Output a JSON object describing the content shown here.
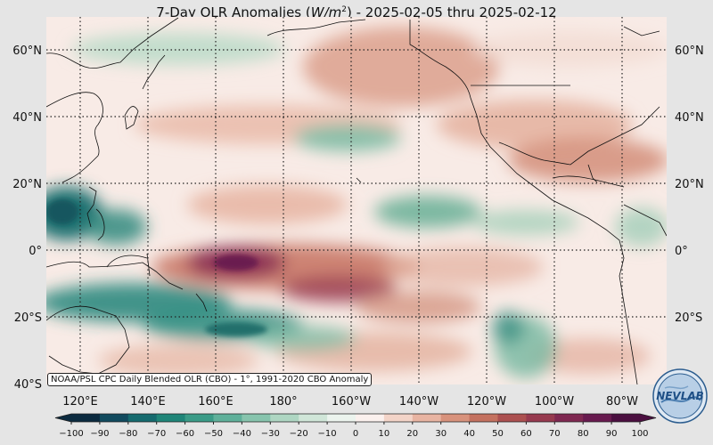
{
  "title": {
    "prefix": "7-Day OLR Anomalies (",
    "unit_italic": "W/m",
    "unit_exp": "2",
    "suffix": ") - 2025-02-05 thru 2025-02-12"
  },
  "source_note": "NOAA/PSL CPC Daily Blended OLR (CBO) - 1°, 1991-2020 CBO Anomaly",
  "logo_text": "NEVLAB",
  "map": {
    "lat_ticks": [
      "60°N",
      "40°N",
      "20°N",
      "0°",
      "20°S",
      "40°S"
    ],
    "lon_ticks": [
      "120°E",
      "140°E",
      "160°E",
      "180°",
      "160°W",
      "140°W",
      "120°W",
      "100°W",
      "80°W"
    ]
  },
  "colorbar": {
    "ticks": [
      "−100",
      "−90",
      "−80",
      "−70",
      "−60",
      "−50",
      "−40",
      "−30",
      "−20",
      "−10",
      "0",
      "10",
      "20",
      "30",
      "40",
      "50",
      "60",
      "70",
      "80",
      "90",
      "100"
    ],
    "range": [
      -100,
      100
    ],
    "colors": [
      "#0b2a3f",
      "#114a5e",
      "#156a6e",
      "#1f8578",
      "#3a9b87",
      "#5fb09a",
      "#87c4ad",
      "#aed6c2",
      "#d0e6d8",
      "#ecf4ee",
      "#fbf1ee",
      "#f3d4c8",
      "#e8b4a2",
      "#d8927c",
      "#c4715f",
      "#ac5050",
      "#973a4f",
      "#7f2851",
      "#681a4f",
      "#4b0f40"
    ]
  }
}
